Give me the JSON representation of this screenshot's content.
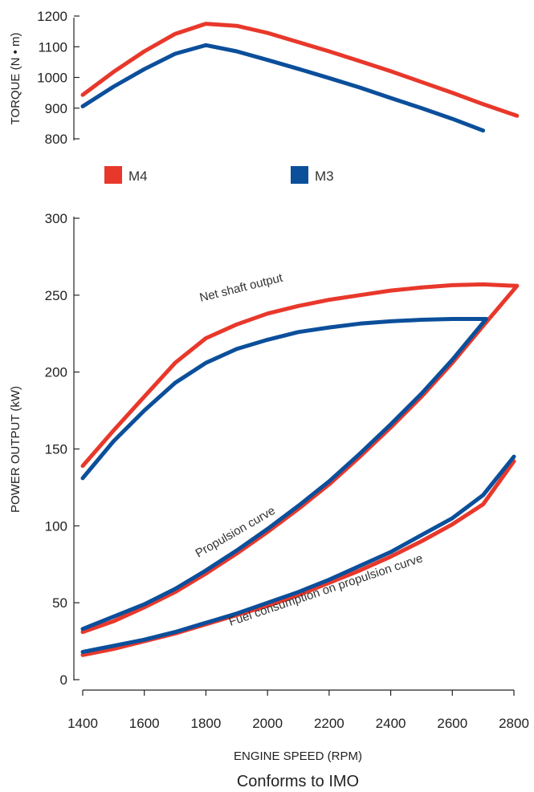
{
  "chart_data": [
    {
      "type": "line",
      "ylabel": "TORQUE (N • m)",
      "xlim": [
        1400,
        2800
      ],
      "ylim": [
        800,
        1200
      ],
      "y_ticks": [
        800,
        900,
        1000,
        1100,
        1200
      ],
      "series": [
        {
          "name": "M4",
          "color": "#e8382b",
          "x": [
            1400,
            1500,
            1600,
            1700,
            1800,
            1900,
            2000,
            2100,
            2200,
            2300,
            2400,
            2500,
            2600,
            2700,
            2810
          ],
          "y": [
            943,
            1018,
            1085,
            1142,
            1175,
            1168,
            1145,
            1115,
            1085,
            1053,
            1020,
            985,
            950,
            913,
            875
          ]
        },
        {
          "name": "M3",
          "color": "#0b4f9b",
          "x": [
            1400,
            1500,
            1600,
            1700,
            1800,
            1900,
            2000,
            2100,
            2200,
            2300,
            2400,
            2500,
            2600,
            2700
          ],
          "y": [
            906,
            970,
            1027,
            1077,
            1105,
            1085,
            1057,
            1028,
            998,
            967,
            933,
            900,
            865,
            827
          ]
        }
      ]
    },
    {
      "type": "line",
      "xlabel": "ENGINE SPEED (RPM)",
      "ylabel": "POWER OUTPUT (kW)",
      "xlim": [
        1400,
        2800
      ],
      "ylim": [
        0,
        300
      ],
      "x_ticks": [
        1400,
        1600,
        1800,
        2000,
        2200,
        2400,
        2600,
        2800
      ],
      "y_ticks": [
        0,
        50,
        100,
        150,
        200,
        250,
        300
      ],
      "series": [
        {
          "name": "M4",
          "curve": "Net shaft output",
          "color": "#e8382b",
          "x": [
            1400,
            1500,
            1600,
            1700,
            1800,
            1900,
            2000,
            2100,
            2200,
            2300,
            2400,
            2500,
            2600,
            2700,
            2810
          ],
          "y": [
            139,
            162,
            184,
            206,
            222,
            231,
            238,
            243,
            247,
            250,
            253,
            255,
            256.5,
            257,
            256
          ]
        },
        {
          "name": "M3",
          "curve": "Net shaft output",
          "color": "#0b4f9b",
          "x": [
            1400,
            1500,
            1600,
            1700,
            1800,
            1900,
            2000,
            2100,
            2200,
            2300,
            2400,
            2500,
            2600,
            2710
          ],
          "y": [
            131,
            155,
            175,
            193,
            206,
            215,
            221,
            226,
            229,
            231.5,
            233,
            234,
            234.5,
            234.5
          ]
        },
        {
          "name": "M4",
          "curve": "Propulsion curve",
          "color": "#e8382b",
          "x": [
            1400,
            1500,
            1600,
            1700,
            1800,
            1900,
            2000,
            2100,
            2200,
            2300,
            2400,
            2500,
            2600,
            2700,
            2810
          ],
          "y": [
            31,
            38,
            47,
            57,
            69,
            82,
            96,
            111,
            127,
            145,
            164,
            184,
            206,
            230,
            256
          ]
        },
        {
          "name": "M3",
          "curve": "Propulsion curve",
          "color": "#0b4f9b",
          "x": [
            1400,
            1500,
            1600,
            1700,
            1800,
            1900,
            2000,
            2100,
            2200,
            2300,
            2400,
            2500,
            2600,
            2710
          ],
          "y": [
            33,
            41,
            49,
            59,
            71,
            84,
            98,
            113,
            129,
            147,
            166,
            186,
            208,
            234.5
          ]
        },
        {
          "name": "M4",
          "curve": "Fuel consumption on propulsion curve",
          "color": "#e8382b",
          "x": [
            1400,
            1500,
            1600,
            1700,
            1800,
            1900,
            2000,
            2100,
            2200,
            2300,
            2400,
            2500,
            2600,
            2700,
            2800
          ],
          "y": [
            16,
            20,
            25,
            30,
            36,
            42,
            48,
            55,
            63,
            71,
            80,
            90,
            101,
            114,
            142
          ]
        },
        {
          "name": "M3",
          "curve": "Fuel consumption on propulsion curve",
          "color": "#0b4f9b",
          "x": [
            1400,
            1500,
            1600,
            1700,
            1800,
            1900,
            2000,
            2100,
            2200,
            2300,
            2400,
            2500,
            2600,
            2700,
            2800
          ],
          "y": [
            18,
            22,
            26,
            31,
            37,
            43,
            50,
            57,
            65,
            74,
            83,
            94,
            105,
            120,
            145
          ]
        }
      ],
      "annotations": [
        "Net shaft output",
        "Propulsion curve",
        "Fuel consumption on propulsion curve"
      ]
    }
  ],
  "legend": [
    {
      "label": "M4",
      "color": "#e8382b"
    },
    {
      "label": "M3",
      "color": "#0b4f9b"
    }
  ],
  "caption": "Conforms to IMO"
}
